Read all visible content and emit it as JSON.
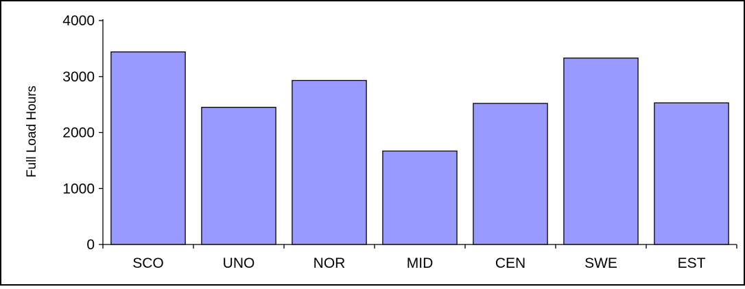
{
  "chart_data": {
    "type": "bar",
    "title": "",
    "xlabel": "",
    "ylabel": "Full Load Hours",
    "categories": [
      "SCO",
      "UNO",
      "NOR",
      "MID",
      "CEN",
      "SWE",
      "EST"
    ],
    "values": [
      3440,
      2450,
      2930,
      1670,
      2520,
      3330,
      2530
    ],
    "ylim": [
      0,
      4000
    ],
    "yticks": [
      "0",
      "1000",
      "2000",
      "3000",
      "4000"
    ],
    "grid": false,
    "legend": "none",
    "colors": {
      "bar_fill": "#9999ff",
      "bar_stroke": "#000000",
      "axis": "#000000",
      "background": "#ffffff",
      "frame": "#000000"
    }
  }
}
